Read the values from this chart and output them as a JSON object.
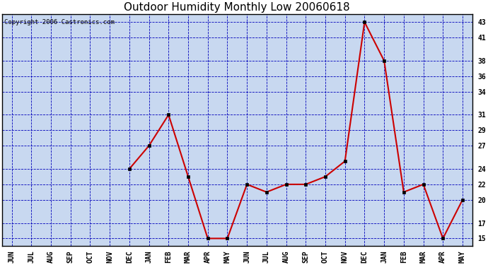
{
  "title": "Outdoor Humidity Monthly Low 20060618",
  "copyright_text": "Copyright 2006 Castronics.com",
  "x_labels": [
    "JUN",
    "JUL",
    "AUG",
    "SEP",
    "OCT",
    "NOV",
    "DEC",
    "JAN",
    "FEB",
    "MAR",
    "APR",
    "MAY",
    "JUN",
    "JUL",
    "AUG",
    "SEP",
    "OCT",
    "NOV",
    "DEC",
    "JAN",
    "FEB",
    "MAR",
    "APR",
    "MAY"
  ],
  "y_values": [
    null,
    null,
    null,
    null,
    null,
    null,
    24,
    27,
    31,
    23,
    15,
    15,
    22,
    21,
    22,
    22,
    23,
    25,
    43,
    38,
    21,
    22,
    15,
    20
  ],
  "y_ticks": [
    15,
    17,
    20,
    22,
    24,
    27,
    29,
    31,
    34,
    36,
    38,
    41,
    43
  ],
  "ylim_min": 14.0,
  "ylim_max": 44.0,
  "line_color": "#cc0000",
  "marker_color": "black",
  "marker_size": 3,
  "bg_color": "#c8d8f0",
  "grid_color": "#0000bb",
  "grid_style": "--",
  "title_fontsize": 11,
  "tick_fontsize": 7,
  "copyright_fontsize": 6.5
}
